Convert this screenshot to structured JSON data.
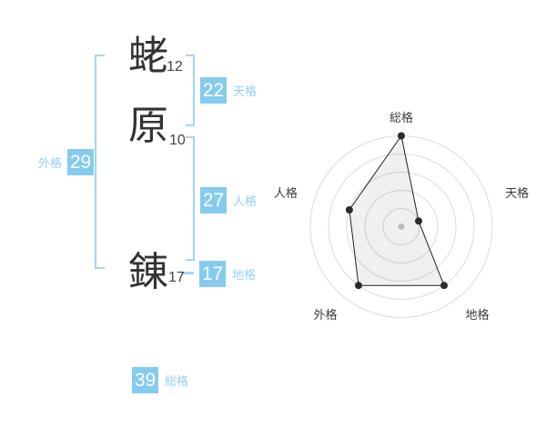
{
  "colors": {
    "badge_bg": "#85CBF0",
    "badge_text": "#FFFFFF",
    "grid_label": "#92D1F4",
    "bracket": "#9FD7F6",
    "kanji": "#333333",
    "stroke_count": "#444444",
    "chart_ring": "#DBDBDB",
    "chart_line": "#1F1F1F",
    "chart_fill": "rgba(0,0,0,0.06)",
    "chart_dot": "#2B2B2B",
    "chart_center_dot": "#C9C9C9",
    "chart_label": "#3A3A3A"
  },
  "name": {
    "characters": [
      {
        "glyph": "蛯",
        "strokes": "12"
      },
      {
        "glyph": "原",
        "strokes": "10"
      },
      {
        "glyph": "錬",
        "strokes": "17"
      }
    ]
  },
  "grids": {
    "tenkaku": {
      "value": "22",
      "label": "天格"
    },
    "jinkaku": {
      "value": "27",
      "label": "人格"
    },
    "chikaku": {
      "value": "17",
      "label": "地格"
    },
    "gaikaku": {
      "value": "29",
      "label": "外格"
    },
    "soukaku": {
      "value": "39",
      "label": "総格"
    }
  },
  "chart_data": {
    "type": "radar",
    "axes": [
      "総格",
      "天格",
      "地格",
      "外格",
      "人格"
    ],
    "values": [
      5,
      1,
      4,
      4,
      3
    ],
    "max": 5,
    "rings": 5,
    "grid": true,
    "legend_position": "none",
    "start_angle_deg": 90,
    "direction": "clockwise"
  }
}
